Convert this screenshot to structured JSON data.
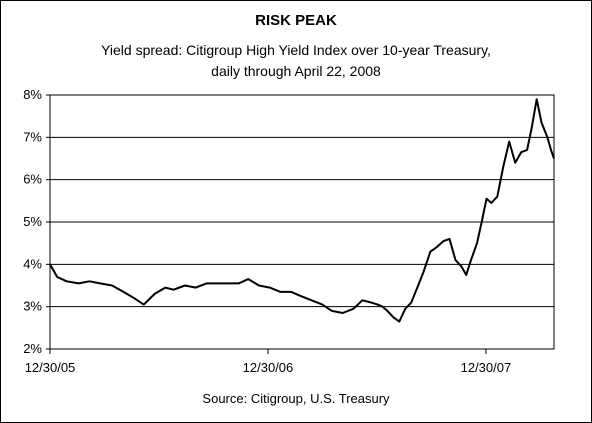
{
  "chart_data": {
    "type": "line",
    "title": "RISK PEAK",
    "subtitle_lines": [
      "Yield spread: Citigroup High Yield Index over 10-year Treasury,",
      "daily through April 22, 2008"
    ],
    "source": "Source: Citigroup, U.S. Treasury",
    "xlabel": "",
    "ylabel": "",
    "y_ticks": [
      "2%",
      "3%",
      "4%",
      "5%",
      "6%",
      "7%",
      "8%"
    ],
    "ylim": [
      2,
      8
    ],
    "x_tick_labels": [
      "12/30/05",
      "12/30/06",
      "12/30/07"
    ],
    "x_ticks": [
      "2005-12-30",
      "2006-12-30",
      "2007-12-30"
    ],
    "xlim": [
      "2005-12-30",
      "2008-04-22"
    ],
    "grid": "horizontal",
    "line_color": "#000000",
    "series": [
      {
        "x": [
          "2005-12-30",
          "2006-01-11",
          "2006-01-27",
          "2006-02-16",
          "2006-03-06",
          "2006-03-24",
          "2006-04-13",
          "2006-05-02",
          "2006-05-20",
          "2006-06-05",
          "2006-06-23",
          "2006-07-11",
          "2006-07-25",
          "2006-08-13",
          "2006-08-31",
          "2006-09-18",
          "2006-10-06",
          "2006-10-24",
          "2006-11-11",
          "2006-11-27",
          "2006-12-15",
          "2007-01-02",
          "2007-01-20",
          "2007-02-07",
          "2007-02-23",
          "2007-03-13",
          "2007-03-31",
          "2007-04-16",
          "2007-05-04",
          "2007-05-22",
          "2007-06-06",
          "2007-06-20",
          "2007-07-02",
          "2007-07-10",
          "2007-07-18",
          "2007-07-28",
          "2007-08-07",
          "2007-08-17",
          "2007-08-27",
          "2007-09-06",
          "2007-09-16",
          "2007-09-28",
          "2007-10-08",
          "2007-10-20",
          "2007-10-30",
          "2007-11-09",
          "2007-11-19",
          "2007-11-27",
          "2007-12-05",
          "2007-12-15",
          "2007-12-23",
          "2007-12-31",
          "2008-01-08",
          "2008-01-18",
          "2008-01-28",
          "2008-02-07",
          "2008-02-17",
          "2008-02-27",
          "2008-03-08",
          "2008-03-16",
          "2008-03-24",
          "2008-04-01",
          "2008-04-11",
          "2008-04-17",
          "2008-04-22"
        ],
        "values": [
          4.0,
          3.7,
          3.6,
          3.55,
          3.6,
          3.55,
          3.5,
          3.35,
          3.2,
          3.05,
          3.3,
          3.45,
          3.4,
          3.5,
          3.45,
          3.55,
          3.55,
          3.55,
          3.55,
          3.65,
          3.5,
          3.45,
          3.35,
          3.35,
          3.25,
          3.15,
          3.05,
          2.9,
          2.85,
          2.95,
          3.15,
          3.1,
          3.05,
          3.0,
          2.9,
          2.75,
          2.65,
          2.95,
          3.1,
          3.45,
          3.8,
          4.3,
          4.4,
          4.55,
          4.6,
          4.1,
          3.95,
          3.75,
          4.1,
          4.5,
          5.0,
          5.55,
          5.45,
          5.6,
          6.3,
          6.9,
          6.4,
          6.65,
          6.7,
          7.25,
          7.9,
          7.35,
          7.0,
          6.7,
          6.5
        ]
      }
    ]
  }
}
